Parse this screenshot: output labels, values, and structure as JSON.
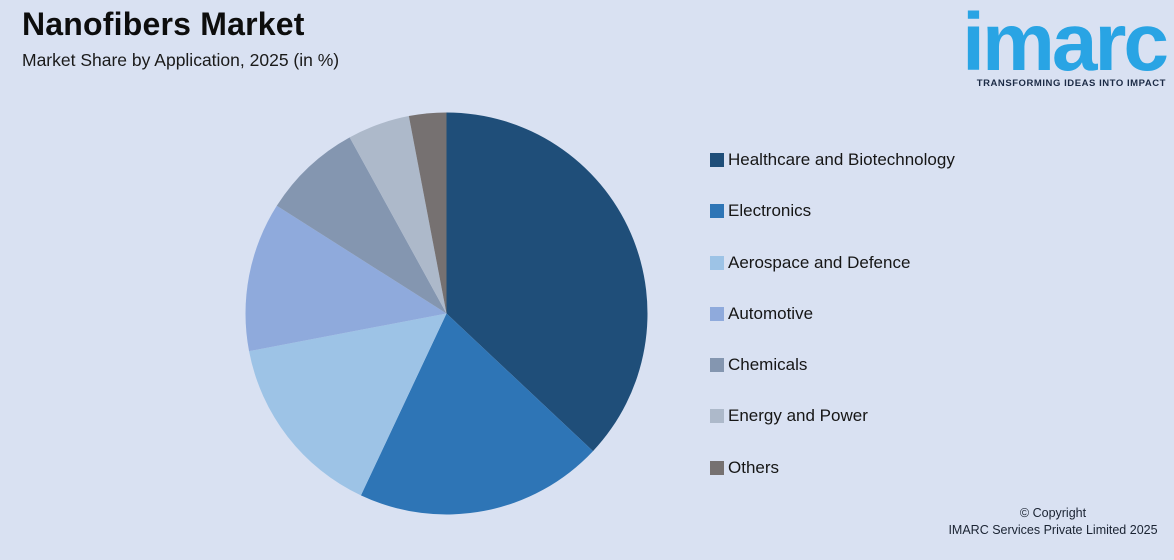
{
  "header": {
    "title": "Nanofibers Market",
    "subtitle": "Market Share by Application, 2025 (in %)"
  },
  "logo": {
    "brand": "imarc",
    "tagline": "TRANSFORMING IDEAS INTO IMPACT",
    "brand_color": "#29A4E4"
  },
  "chart_data": {
    "type": "pie",
    "title": "Nanofibers Market",
    "subtitle": "Market Share by Application, 2025 (in %)",
    "unit": "%",
    "categories": [
      "Healthcare and Biotechnology",
      "Electronics",
      "Aerospace and Defence",
      "Automotive",
      "Chemicals",
      "Energy and Power",
      "Others"
    ],
    "values": [
      37,
      20,
      15,
      12,
      8,
      5,
      3
    ],
    "colors": [
      "#1F4E79",
      "#2E75B6",
      "#9DC3E6",
      "#8FAADC",
      "#8496B0",
      "#ADB9CA",
      "#767171"
    ],
    "start_angle_deg": 0,
    "direction": "clockwise",
    "legend_position": "right",
    "data_labels": false
  },
  "footer": {
    "line1": "© Copyright",
    "line2": "IMARC Services Private Limited 2025"
  },
  "colors": {
    "background": "#D9E1F2"
  }
}
